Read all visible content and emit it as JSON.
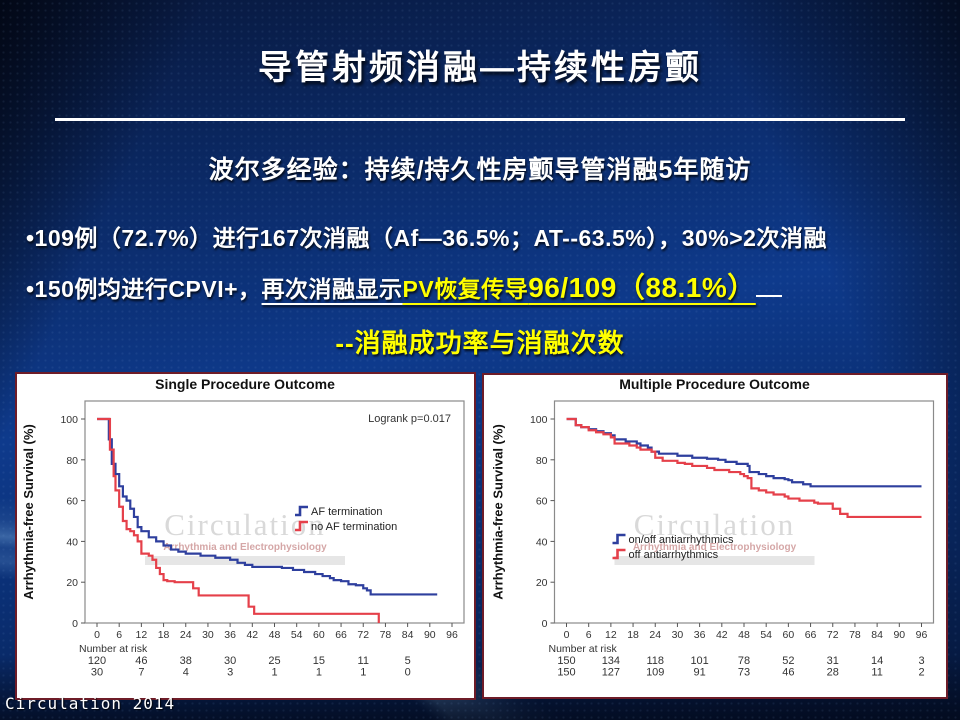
{
  "slide": {
    "title": "导管射频消融—持续性房颤",
    "subtitle": "波尔多经验：持续/持久性房颤导管消融5年随访",
    "bullet1": "•109例（72.7%）进行167次消融（Af—36.5%；AT--63.5%），30%>2次消融",
    "bullet2": {
      "part1": "•150例均进行CPVI+，",
      "part2": "再次消融显示",
      "part3": "PV恢复传导",
      "part4": "96/109（88.1%）"
    },
    "emphasis": "--消融成功率与消融次数",
    "footer": "Circulation 2014",
    "colors": {
      "highlight": "#ffff00",
      "text": "#ffffff"
    }
  },
  "chart_data": [
    {
      "type": "line",
      "subtype": "kaplan-meier-step",
      "title": "Single Procedure Outcome",
      "annotation": "Logrank p=0.017",
      "ylabel": "Arrhythmia-free Survival (%)",
      "xlim": [
        0,
        96
      ],
      "ylim": [
        0,
        100
      ],
      "grid": false,
      "xticks": [
        0,
        6,
        12,
        18,
        24,
        30,
        36,
        42,
        48,
        54,
        60,
        66,
        72,
        78,
        84,
        90,
        96
      ],
      "yticks": [
        0,
        20,
        40,
        60,
        80,
        100
      ],
      "legend_pos": [
        278,
        130
      ],
      "series": [
        {
          "name": "AF termination",
          "color": "#2e3f9e",
          "points": [
            [
              0,
              100
            ],
            [
              2.5,
              100
            ],
            [
              3.2,
              90
            ],
            [
              4,
              78
            ],
            [
              5,
              73
            ],
            [
              6,
              67
            ],
            [
              7,
              62
            ],
            [
              8,
              60
            ],
            [
              9,
              56
            ],
            [
              10,
              52
            ],
            [
              11,
              47
            ],
            [
              12,
              45
            ],
            [
              14,
              42
            ],
            [
              16,
              40
            ],
            [
              18,
              38
            ],
            [
              20,
              36
            ],
            [
              22,
              35
            ],
            [
              24,
              34
            ],
            [
              28,
              33
            ],
            [
              32,
              32
            ],
            [
              36,
              31
            ],
            [
              38,
              29.5
            ],
            [
              40,
              28.5
            ],
            [
              42,
              27.5
            ],
            [
              48,
              27.5
            ],
            [
              50,
              27
            ],
            [
              53,
              26
            ],
            [
              56,
              25
            ],
            [
              59,
              24
            ],
            [
              61,
              23
            ],
            [
              63,
              22
            ],
            [
              64,
              21
            ],
            [
              66,
              20.5
            ],
            [
              68,
              19
            ],
            [
              70,
              18.5
            ],
            [
              72,
              17
            ],
            [
              73,
              16
            ],
            [
              74,
              14
            ],
            [
              92,
              14
            ]
          ]
        },
        {
          "name": "no AF termination",
          "color": "#e5404a",
          "points": [
            [
              0,
              100
            ],
            [
              2.5,
              100
            ],
            [
              3.5,
              85
            ],
            [
              4.5,
              72
            ],
            [
              5,
              65
            ],
            [
              6,
              57
            ],
            [
              7,
              50
            ],
            [
              8,
              46
            ],
            [
              9,
              45
            ],
            [
              10,
              43
            ],
            [
              11,
              40
            ],
            [
              12,
              34
            ],
            [
              14,
              33
            ],
            [
              15,
              31
            ],
            [
              16,
              27
            ],
            [
              17,
              24
            ],
            [
              18,
              21
            ],
            [
              19,
              20.5
            ],
            [
              21,
              20
            ],
            [
              25,
              20
            ],
            [
              26,
              17
            ],
            [
              27.5,
              13.5
            ],
            [
              40,
              13.5
            ],
            [
              41,
              8
            ],
            [
              42.5,
              4.5
            ],
            [
              76,
              4.5
            ],
            [
              76.2,
              0
            ]
          ]
        }
      ],
      "number_at_risk": {
        "label": "Number at risk",
        "columns": [
          0,
          12,
          24,
          36,
          48,
          60,
          72,
          84
        ],
        "rows": [
          [
            120,
            46,
            38,
            30,
            25,
            15,
            11,
            5
          ],
          [
            30,
            7,
            4,
            3,
            1,
            1,
            1,
            0
          ]
        ]
      },
      "watermark": {
        "line1": "Circulation",
        "line2": "Arrhythmia and Electrophysiology"
      }
    },
    {
      "type": "line",
      "subtype": "kaplan-meier-step",
      "title": "Multiple Procedure Outcome",
      "annotation": "",
      "ylabel": "Arrhythmia-free Survival (%)",
      "xlim": [
        0,
        96
      ],
      "ylim": [
        0,
        100
      ],
      "grid": false,
      "xticks": [
        0,
        6,
        12,
        18,
        24,
        30,
        36,
        42,
        48,
        54,
        60,
        66,
        72,
        78,
        84,
        90,
        96
      ],
      "yticks": [
        0,
        20,
        40,
        60,
        80,
        100
      ],
      "legend_pos": [
        126,
        158
      ],
      "series": [
        {
          "name": "on/off antiarrhythmics",
          "color": "#2e3f9e",
          "points": [
            [
              0,
              100
            ],
            [
              2,
              100
            ],
            [
              2.5,
              97
            ],
            [
              4,
              96
            ],
            [
              6,
              95
            ],
            [
              8,
              94
            ],
            [
              10,
              93
            ],
            [
              12,
              92
            ],
            [
              13,
              90
            ],
            [
              16,
              89
            ],
            [
              19,
              88
            ],
            [
              20,
              87
            ],
            [
              22,
              86
            ],
            [
              23,
              84
            ],
            [
              25,
              83
            ],
            [
              30,
              82
            ],
            [
              34,
              81
            ],
            [
              38,
              80.5
            ],
            [
              41,
              80
            ],
            [
              43,
              79
            ],
            [
              46,
              78
            ],
            [
              49,
              77
            ],
            [
              49.5,
              74
            ],
            [
              52,
              73
            ],
            [
              54,
              72
            ],
            [
              56,
              71
            ],
            [
              59,
              70.5
            ],
            [
              60,
              70
            ],
            [
              61,
              69
            ],
            [
              64,
              68
            ],
            [
              66,
              67
            ],
            [
              96,
              67
            ]
          ]
        },
        {
          "name": "off antiarrhythmics",
          "color": "#e5404a",
          "points": [
            [
              0,
              100
            ],
            [
              2,
              100
            ],
            [
              2.5,
              97
            ],
            [
              4,
              96
            ],
            [
              6,
              94.5
            ],
            [
              8,
              93.5
            ],
            [
              10,
              92.5
            ],
            [
              12,
              91
            ],
            [
              13,
              88
            ],
            [
              17,
              87
            ],
            [
              19,
              86
            ],
            [
              20,
              85
            ],
            [
              23,
              84
            ],
            [
              24,
              81
            ],
            [
              26,
              79.5
            ],
            [
              30,
              78.5
            ],
            [
              32,
              78
            ],
            [
              34,
              77
            ],
            [
              38,
              76
            ],
            [
              40,
              75
            ],
            [
              44,
              74
            ],
            [
              47,
              73
            ],
            [
              48,
              72
            ],
            [
              49,
              71
            ],
            [
              50,
              66
            ],
            [
              52,
              65
            ],
            [
              54,
              64
            ],
            [
              56,
              63
            ],
            [
              59,
              62
            ],
            [
              60,
              61
            ],
            [
              63,
              60
            ],
            [
              67,
              59
            ],
            [
              68,
              58.5
            ],
            [
              71,
              58.5
            ],
            [
              72,
              56
            ],
            [
              74,
              53.5
            ],
            [
              76,
              52
            ],
            [
              96,
              52
            ]
          ]
        }
      ],
      "number_at_risk": {
        "label": "Number at risk",
        "columns": [
          0,
          12,
          24,
          36,
          48,
          60,
          72,
          84,
          96
        ],
        "rows": [
          [
            150,
            134,
            118,
            101,
            78,
            52,
            31,
            14,
            3
          ],
          [
            150,
            127,
            109,
            91,
            73,
            46,
            28,
            11,
            2
          ]
        ]
      },
      "watermark": {
        "line1": "Circulation",
        "line2": "Arrhythmia and Electrophysiology"
      }
    }
  ]
}
